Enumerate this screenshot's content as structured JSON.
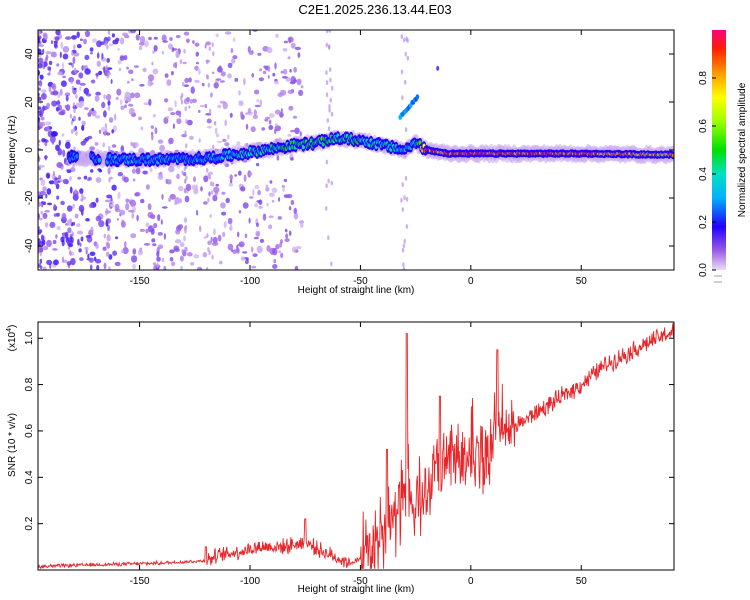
{
  "title": "C2E1.2025.236.13.44.E03",
  "chart_data": [
    {
      "type": "heatmap",
      "xlabel": "Height of straight line (km)",
      "ylabel": "Frequency (Hz)",
      "xlim": [
        -196,
        92
      ],
      "ylim": [
        -50,
        50
      ],
      "xticks": [
        -150,
        -100,
        -50,
        0,
        50
      ],
      "yticks": [
        -40,
        -20,
        0,
        20,
        40
      ],
      "colorbar": {
        "label": "Normalized spectral amplitude",
        "range": [
          0,
          1
        ],
        "ticks": [
          "0.0",
          "0.2",
          "0.4",
          "0.6",
          "0.8"
        ],
        "tick_values": [
          0,
          0.2,
          0.4,
          0.6,
          0.8
        ]
      },
      "ridge": {
        "description_points_x": [
          -180,
          -160,
          -140,
          -120,
          -100,
          -80,
          -70,
          -60,
          -50,
          -40,
          -30,
          -25,
          -20,
          -10,
          0,
          20,
          50,
          90
        ],
        "frequency_hz": [
          -3,
          -4,
          -4,
          -3.5,
          -1,
          2,
          3,
          5,
          4,
          2,
          0,
          3,
          0,
          -1.5,
          -1.5,
          -1.5,
          -1.5,
          -2
        ],
        "amplitude": [
          0.25,
          0.3,
          0.3,
          0.3,
          0.4,
          0.45,
          0.5,
          0.45,
          0.45,
          0.4,
          0.35,
          0.4,
          0.9,
          0.85,
          0.9,
          0.85,
          0.85,
          0.75
        ]
      }
    },
    {
      "type": "line",
      "xlabel": "Height of straight line (km)",
      "ylabel": "SNR (10 * v/v)",
      "scale_label": "(x10",
      "scale_exp": "4",
      "scale_close": ")",
      "xlim": [
        -196,
        92
      ],
      "ylim": [
        0,
        1.07
      ],
      "xticks": [
        -150,
        -100,
        -50,
        0,
        50
      ],
      "yticks": [
        "0.2",
        "0.4",
        "0.6",
        "0.8",
        "1.0"
      ],
      "ytick_values": [
        0.2,
        0.4,
        0.6,
        0.8,
        1.0
      ],
      "series": [
        {
          "name": "SNR",
          "color": "#e8262a",
          "x": [
            -196,
            -180,
            -160,
            -140,
            -120,
            -115,
            -105,
            -95,
            -85,
            -75,
            -65,
            -55,
            -48,
            -42,
            -38,
            -34,
            -30,
            -29,
            -26,
            -22,
            -19,
            -15,
            -10,
            -5,
            0,
            5,
            10,
            15,
            20,
            30,
            40,
            50,
            60,
            70,
            80,
            92
          ],
          "values": [
            0.015,
            0.02,
            0.025,
            0.03,
            0.04,
            0.06,
            0.08,
            0.1,
            0.1,
            0.12,
            0.07,
            0.03,
            0.05,
            0.1,
            0.2,
            0.22,
            0.3,
            0.35,
            0.25,
            0.3,
            0.35,
            0.42,
            0.45,
            0.48,
            0.52,
            0.46,
            0.55,
            0.6,
            0.62,
            0.68,
            0.74,
            0.8,
            0.88,
            0.93,
            0.98,
            1.03
          ],
          "spikes": [
            {
              "x": -120,
              "value": 0.1
            },
            {
              "x": -75,
              "value": 0.22
            },
            {
              "x": -38,
              "value": 0.52
            },
            {
              "x": -29,
              "value": 1.02
            },
            {
              "x": -14,
              "value": 0.75
            },
            {
              "x": 12,
              "value": 0.95
            }
          ]
        }
      ]
    }
  ]
}
